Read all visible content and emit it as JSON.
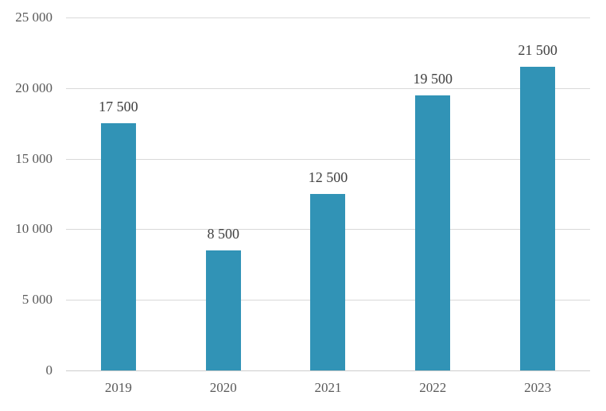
{
  "chart_data": {
    "type": "bar",
    "title": "",
    "xlabel": "",
    "ylabel": "",
    "categories": [
      "2019",
      "2020",
      "2021",
      "2022",
      "2023"
    ],
    "values": [
      17500,
      8500,
      12500,
      19500,
      21500
    ],
    "value_labels": [
      "17 500",
      "8 500",
      "12 500",
      "19 500",
      "21 500"
    ],
    "ylim": [
      0,
      25000
    ],
    "yticks": [
      0,
      5000,
      10000,
      15000,
      20000,
      25000
    ],
    "ytick_labels": [
      "0",
      "5 000",
      "10 000",
      "15 000",
      "20 000",
      "25 000"
    ],
    "grid": "horizontal",
    "legend": "none",
    "colors": {
      "bar": "#3193B6",
      "gridline": "#D9D9D9",
      "axis_line": "#CDCDCD",
      "tick_label_text": "#595959",
      "value_label_text": "#404040",
      "background": "#FFFFFF"
    }
  }
}
